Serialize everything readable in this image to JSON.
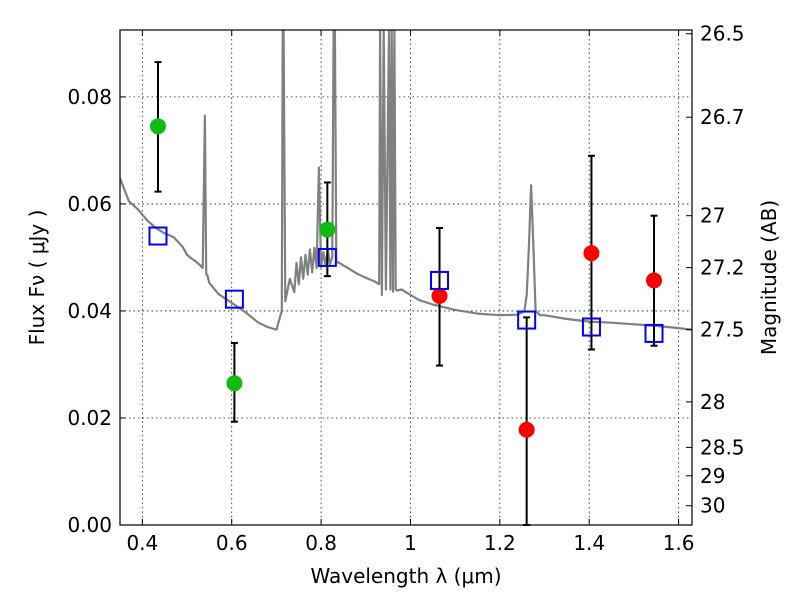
{
  "chart_data": {
    "type": "scatter",
    "title": "",
    "xlabel": "Wavelength  λ (μm)",
    "ylabel": "Flux  Fν  ( μJy )",
    "ylabel_right": "Magnitude (AB)",
    "xlim": [
      0.35,
      1.63
    ],
    "ylim": [
      0.0,
      0.0925
    ],
    "x_ticks": [
      0.4,
      0.6,
      0.8,
      1.0,
      1.2,
      1.4,
      1.6
    ],
    "x_tick_labels": [
      "0.4",
      "0.6",
      "0.8",
      "1",
      "1.2",
      "1.4",
      "1.6"
    ],
    "y_ticks": [
      0.0,
      0.02,
      0.04,
      0.06,
      0.08
    ],
    "y_tick_labels": [
      "0.00",
      "0.02",
      "0.04",
      "0.06",
      "0.08"
    ],
    "right_ticks": [
      {
        "label": "26.5",
        "flux": 0.0918
      },
      {
        "label": "26.7",
        "flux": 0.0762
      },
      {
        "label": "27",
        "flux": 0.0578
      },
      {
        "label": "27.2",
        "flux": 0.0481
      },
      {
        "label": "27.5",
        "flux": 0.0365
      },
      {
        "label": "28",
        "flux": 0.023
      },
      {
        "label": "28.5",
        "flux": 0.0145
      },
      {
        "label": "29",
        "flux": 0.0092
      },
      {
        "label": "30",
        "flux": 0.0036
      }
    ],
    "grid": true,
    "series": [
      {
        "name": "photometry (green)",
        "color": "#11bb11",
        "points": [
          {
            "x": 0.435,
            "y": 0.0745,
            "lo": 0.0623,
            "hi": 0.0865
          },
          {
            "x": 0.606,
            "y": 0.0265,
            "lo": 0.0193,
            "hi": 0.034
          },
          {
            "x": 0.814,
            "y": 0.0552,
            "lo": 0.0465,
            "hi": 0.064
          }
        ]
      },
      {
        "name": "photometry (red)",
        "color": "#ff0000",
        "points": [
          {
            "x": 1.065,
            "y": 0.0428,
            "lo": 0.0298,
            "hi": 0.0555
          },
          {
            "x": 1.26,
            "y": 0.0178,
            "lo": 0.0,
            "hi": 0.0388
          },
          {
            "x": 1.405,
            "y": 0.0508,
            "lo": 0.0328,
            "hi": 0.069
          },
          {
            "x": 1.545,
            "y": 0.0457,
            "lo": 0.0335,
            "hi": 0.0578
          }
        ]
      },
      {
        "name": "model photometry",
        "color": "#0000ff",
        "marker": "open-square",
        "points": [
          {
            "x": 0.435,
            "y": 0.054
          },
          {
            "x": 0.606,
            "y": 0.0422
          },
          {
            "x": 0.814,
            "y": 0.05
          },
          {
            "x": 1.065,
            "y": 0.0457
          },
          {
            "x": 1.26,
            "y": 0.0383
          },
          {
            "x": 1.405,
            "y": 0.037
          },
          {
            "x": 1.545,
            "y": 0.0358
          }
        ]
      },
      {
        "name": "model spectrum",
        "color": "#808080",
        "type": "line",
        "x": [
          0.35,
          0.37,
          0.39,
          0.41,
          0.43,
          0.45,
          0.47,
          0.49,
          0.5,
          0.51,
          0.52,
          0.53,
          0.535,
          0.54,
          0.543,
          0.546,
          0.55,
          0.57,
          0.6,
          0.63,
          0.66,
          0.68,
          0.7,
          0.712,
          0.714,
          0.716,
          0.72,
          0.73,
          0.74,
          0.745,
          0.75,
          0.755,
          0.76,
          0.765,
          0.77,
          0.775,
          0.78,
          0.785,
          0.79,
          0.795,
          0.8,
          0.805,
          0.81,
          0.815,
          0.82,
          0.825,
          0.828,
          0.831,
          0.834,
          0.84,
          0.86,
          0.88,
          0.9,
          0.92,
          0.93,
          0.932,
          0.936,
          0.94,
          0.945,
          0.952,
          0.955,
          0.958,
          0.961,
          0.964,
          0.967,
          0.97,
          0.98,
          1.0,
          1.02,
          1.05,
          1.1,
          1.15,
          1.2,
          1.24,
          1.255,
          1.26,
          1.265,
          1.27,
          1.275,
          1.28,
          1.29,
          1.3,
          1.35,
          1.4,
          1.45,
          1.5,
          1.55,
          1.6,
          1.63
        ],
        "y": [
          0.0648,
          0.0605,
          0.059,
          0.057,
          0.0555,
          0.0545,
          0.0538,
          0.052,
          0.0505,
          0.0498,
          0.0492,
          0.0485,
          0.048,
          0.0765,
          0.047,
          0.0465,
          0.0452,
          0.0432,
          0.0415,
          0.0398,
          0.0378,
          0.037,
          0.0365,
          0.04,
          0.0925,
          0.0925,
          0.0418,
          0.046,
          0.0435,
          0.049,
          0.045,
          0.05,
          0.046,
          0.0505,
          0.0468,
          0.0515,
          0.0472,
          0.0518,
          0.048,
          0.0668,
          0.0482,
          0.051,
          0.0485,
          0.0515,
          0.0488,
          0.05,
          0.0925,
          0.0925,
          0.0492,
          0.049,
          0.048,
          0.047,
          0.0462,
          0.0455,
          0.045,
          0.0925,
          0.043,
          0.0925,
          0.044,
          0.0925,
          0.044,
          0.0925,
          0.0436,
          0.0925,
          0.044,
          0.0438,
          0.044,
          0.043,
          0.042,
          0.0412,
          0.0402,
          0.0395,
          0.0392,
          0.0393,
          0.04,
          0.043,
          0.052,
          0.0635,
          0.052,
          0.04,
          0.0392,
          0.0392,
          0.0385,
          0.038,
          0.0378,
          0.0375,
          0.0372,
          0.0368,
          0.0365
        ]
      }
    ]
  }
}
